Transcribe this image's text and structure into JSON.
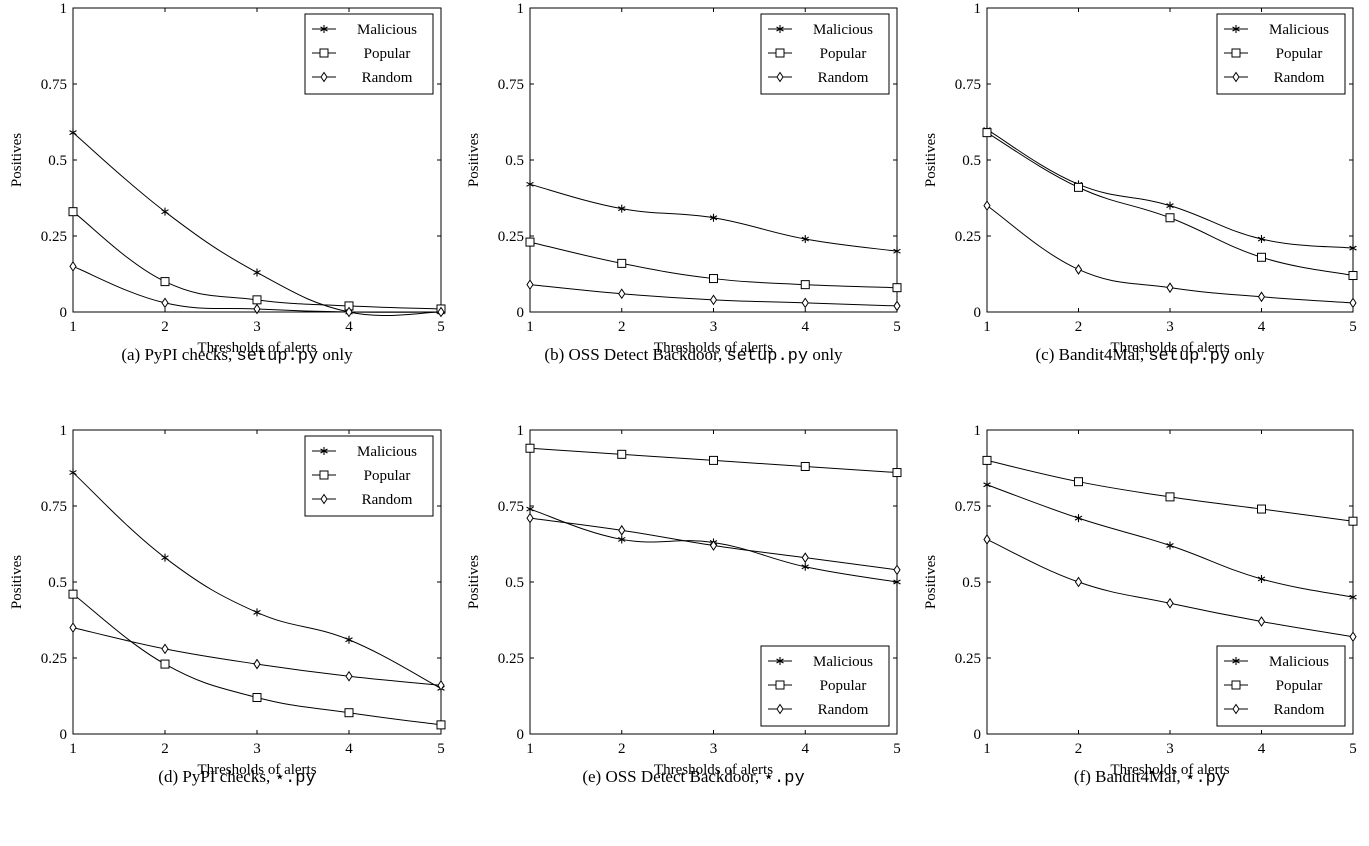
{
  "chart_data": [
    {
      "type": "line",
      "caption": {
        "prefix": "(a) PyPI checks, ",
        "code": "setup.py",
        "suffix": " only"
      },
      "xlabel": "Thresholds of alerts",
      "ylabel": "Positives",
      "x": [
        1,
        2,
        3,
        4,
        5
      ],
      "xlim": [
        1,
        5
      ],
      "ylim": [
        0,
        1
      ],
      "xticks": [
        "1",
        "2",
        "3",
        "4",
        "5"
      ],
      "yticks": [
        "0",
        "0.25",
        "0.5",
        "0.75",
        "1"
      ],
      "legend": "top-right",
      "series": [
        {
          "name": "Malicious",
          "marker": "star",
          "values": [
            0.59,
            0.33,
            0.13,
            0.0,
            0.0
          ]
        },
        {
          "name": "Popular",
          "marker": "square",
          "values": [
            0.33,
            0.1,
            0.04,
            0.02,
            0.01
          ]
        },
        {
          "name": "Random",
          "marker": "diamond",
          "values": [
            0.15,
            0.03,
            0.01,
            0.0,
            0.0
          ]
        }
      ]
    },
    {
      "type": "line",
      "caption": {
        "prefix": "(b) OSS Detect Backdoor, ",
        "code": "setup.py",
        "suffix": " only"
      },
      "xlabel": "Thresholds of alerts",
      "ylabel": "Positives",
      "x": [
        1,
        2,
        3,
        4,
        5
      ],
      "xlim": [
        1,
        5
      ],
      "ylim": [
        0,
        1
      ],
      "xticks": [
        "1",
        "2",
        "3",
        "4",
        "5"
      ],
      "yticks": [
        "0",
        "0.25",
        "0.5",
        "0.75",
        "1"
      ],
      "legend": "top-right",
      "series": [
        {
          "name": "Malicious",
          "marker": "star",
          "values": [
            0.42,
            0.34,
            0.31,
            0.24,
            0.2
          ]
        },
        {
          "name": "Popular",
          "marker": "square",
          "values": [
            0.23,
            0.16,
            0.11,
            0.09,
            0.08
          ]
        },
        {
          "name": "Random",
          "marker": "diamond",
          "values": [
            0.09,
            0.06,
            0.04,
            0.03,
            0.02
          ]
        }
      ]
    },
    {
      "type": "line",
      "caption": {
        "prefix": "(c) Bandit4Mal, ",
        "code": "setup.py",
        "suffix": " only"
      },
      "xlabel": "Thresholds of alerts",
      "ylabel": "Positives",
      "x": [
        1,
        2,
        3,
        4,
        5
      ],
      "xlim": [
        1,
        5
      ],
      "ylim": [
        0,
        1
      ],
      "xticks": [
        "1",
        "2",
        "3",
        "4",
        "5"
      ],
      "yticks": [
        "0",
        "0.25",
        "0.5",
        "0.75",
        "1"
      ],
      "legend": "top-right",
      "series": [
        {
          "name": "Malicious",
          "marker": "star",
          "values": [
            0.6,
            0.42,
            0.35,
            0.24,
            0.21
          ]
        },
        {
          "name": "Popular",
          "marker": "square",
          "values": [
            0.59,
            0.41,
            0.31,
            0.18,
            0.12
          ]
        },
        {
          "name": "Random",
          "marker": "diamond",
          "values": [
            0.35,
            0.14,
            0.08,
            0.05,
            0.03
          ]
        }
      ]
    },
    {
      "type": "line",
      "caption": {
        "prefix": "(d) PyPI checks, ",
        "code": "⋆.py",
        "suffix": ""
      },
      "xlabel": "Thresholds of alerts",
      "ylabel": "Positives",
      "x": [
        1,
        2,
        3,
        4,
        5
      ],
      "xlim": [
        1,
        5
      ],
      "ylim": [
        0,
        1
      ],
      "xticks": [
        "1",
        "2",
        "3",
        "4",
        "5"
      ],
      "yticks": [
        "0",
        "0.25",
        "0.5",
        "0.75",
        "1"
      ],
      "legend": "top-right",
      "series": [
        {
          "name": "Malicious",
          "marker": "star",
          "values": [
            0.86,
            0.58,
            0.4,
            0.31,
            0.15
          ]
        },
        {
          "name": "Popular",
          "marker": "square",
          "values": [
            0.46,
            0.23,
            0.12,
            0.07,
            0.03
          ]
        },
        {
          "name": "Random",
          "marker": "diamond",
          "values": [
            0.35,
            0.28,
            0.23,
            0.19,
            0.16
          ]
        }
      ]
    },
    {
      "type": "line",
      "caption": {
        "prefix": "(e) OSS Detect Backdoor, ",
        "code": "⋆.py",
        "suffix": ""
      },
      "xlabel": "Thresholds of alerts",
      "ylabel": "Positives",
      "x": [
        1,
        2,
        3,
        4,
        5
      ],
      "xlim": [
        1,
        5
      ],
      "ylim": [
        0,
        1
      ],
      "xticks": [
        "1",
        "2",
        "3",
        "4",
        "5"
      ],
      "yticks": [
        "0",
        "0.25",
        "0.5",
        "0.75",
        "1"
      ],
      "legend": "bottom-right",
      "series": [
        {
          "name": "Malicious",
          "marker": "star",
          "values": [
            0.74,
            0.64,
            0.63,
            0.55,
            0.5
          ]
        },
        {
          "name": "Popular",
          "marker": "square",
          "values": [
            0.94,
            0.92,
            0.9,
            0.88,
            0.86
          ]
        },
        {
          "name": "Random",
          "marker": "diamond",
          "values": [
            0.71,
            0.67,
            0.62,
            0.58,
            0.54
          ]
        }
      ]
    },
    {
      "type": "line",
      "caption": {
        "prefix": "(f) Bandit4Mal, ",
        "code": "⋆.py",
        "suffix": ""
      },
      "xlabel": "Thresholds of alerts",
      "ylabel": "Positives",
      "x": [
        1,
        2,
        3,
        4,
        5
      ],
      "xlim": [
        1,
        5
      ],
      "ylim": [
        0,
        1
      ],
      "xticks": [
        "1",
        "2",
        "3",
        "4",
        "5"
      ],
      "yticks": [
        "0",
        "0.25",
        "0.5",
        "0.75",
        "1"
      ],
      "legend": "bottom-right",
      "series": [
        {
          "name": "Malicious",
          "marker": "star",
          "values": [
            0.82,
            0.71,
            0.62,
            0.51,
            0.45
          ]
        },
        {
          "name": "Popular",
          "marker": "square",
          "values": [
            0.9,
            0.83,
            0.78,
            0.74,
            0.7
          ]
        },
        {
          "name": "Random",
          "marker": "diamond",
          "values": [
            0.64,
            0.5,
            0.43,
            0.37,
            0.32
          ]
        }
      ]
    }
  ]
}
